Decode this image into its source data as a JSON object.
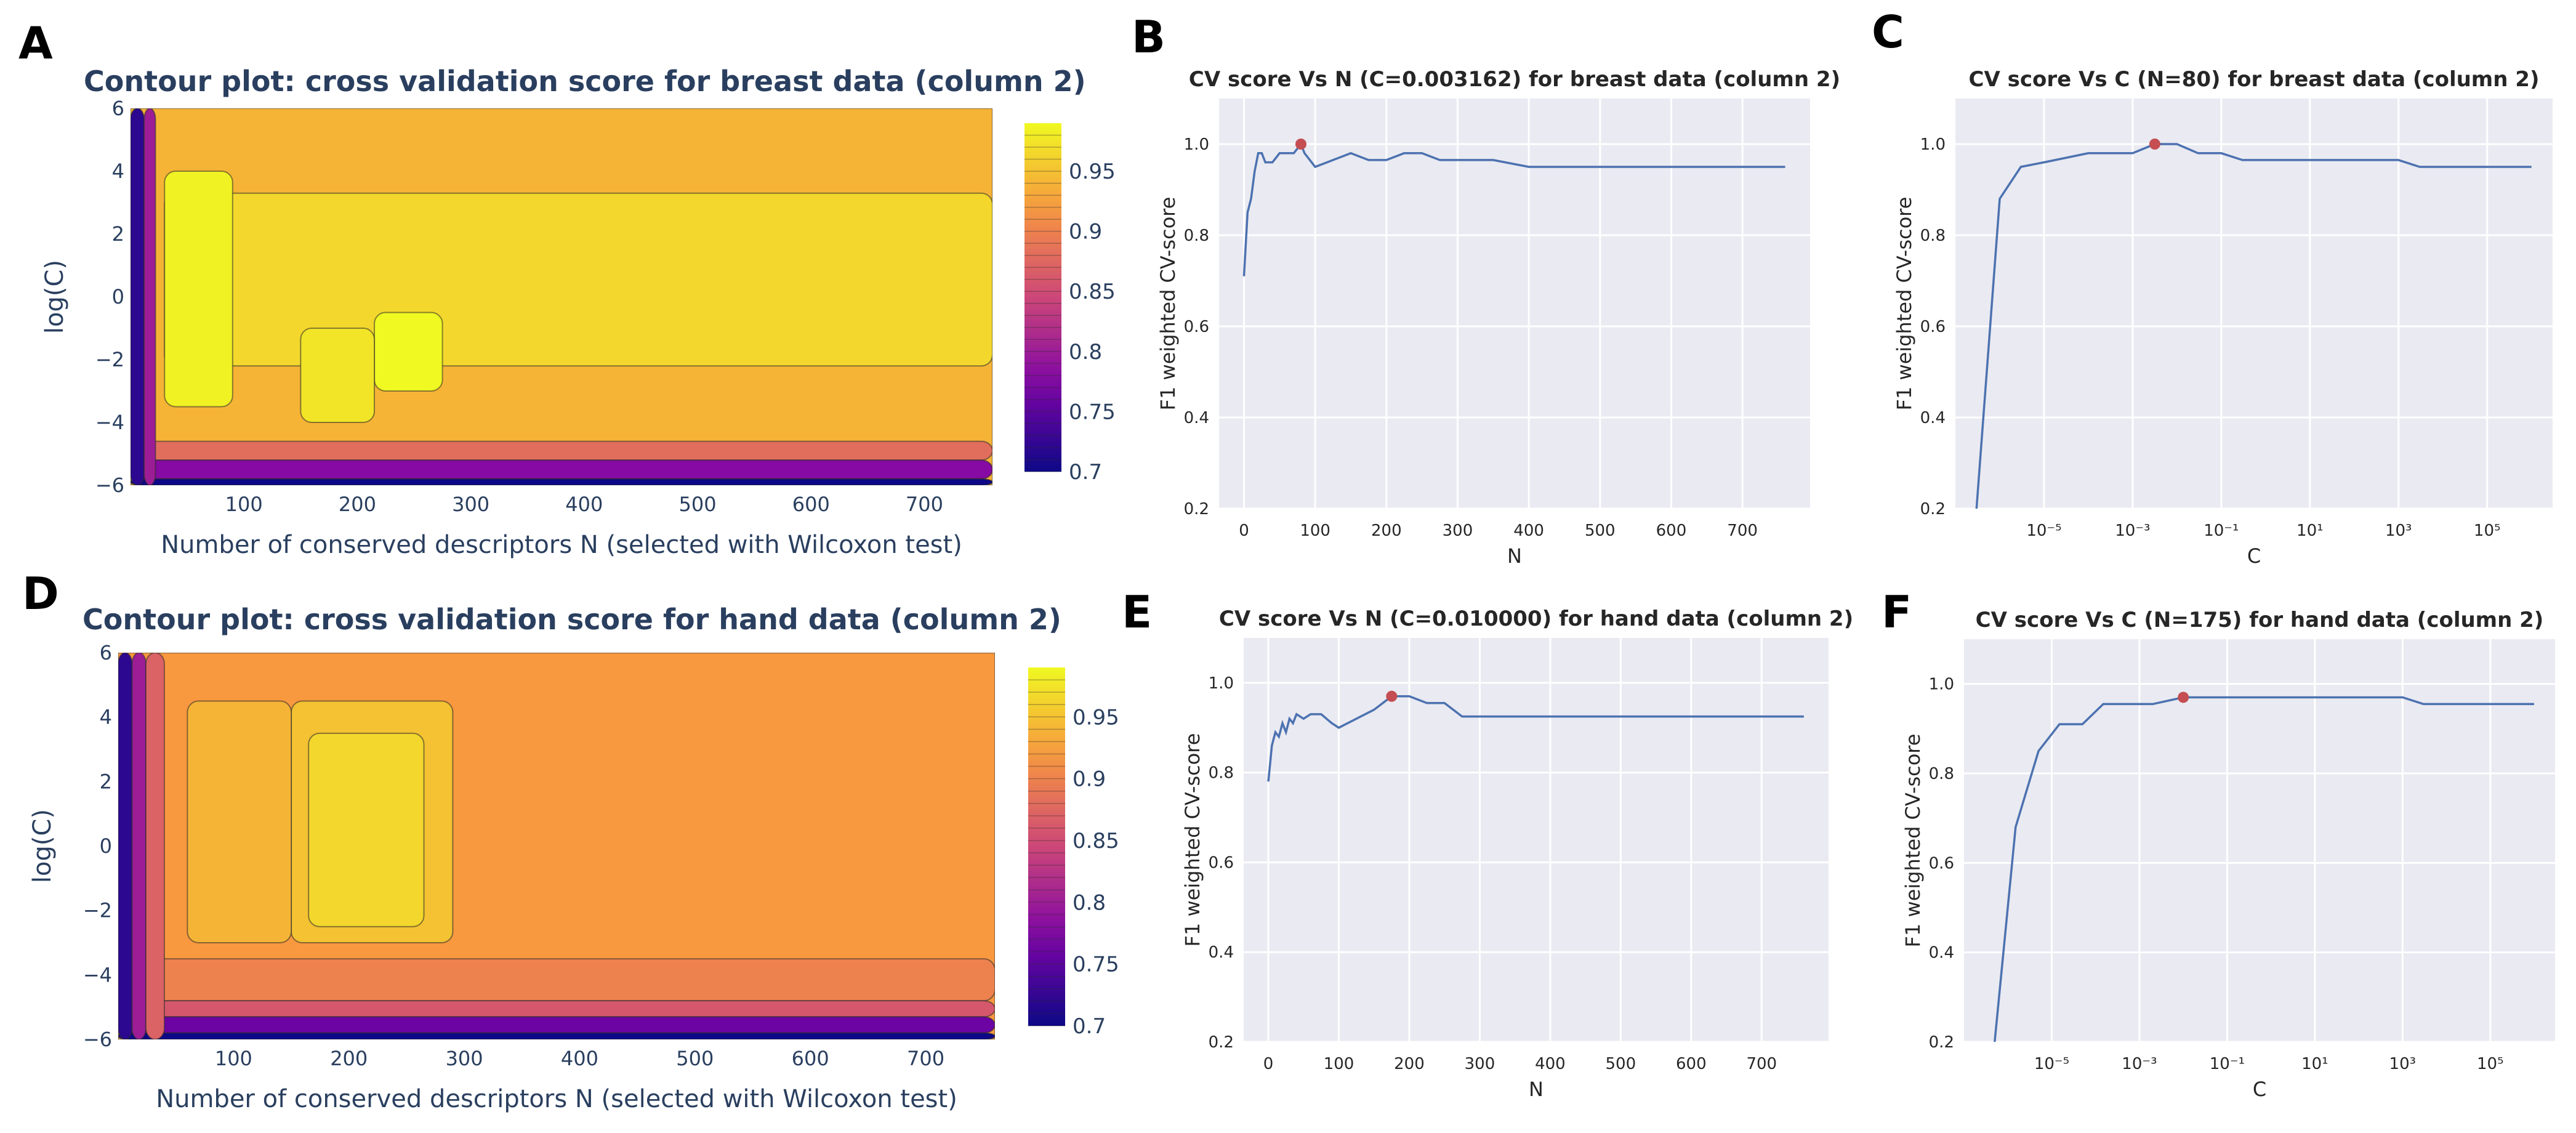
{
  "chart_data": [
    {
      "panel": "A",
      "type": "heatmap",
      "title": "Contour plot: cross validation score for breast data (column 2)",
      "xlabel": "Number of conserved descriptors N (selected with Wilcoxon test)",
      "ylabel": "log(C)",
      "xlim": [
        0,
        760
      ],
      "ylim": [
        -6,
        6
      ],
      "x_ticks": [
        100,
        200,
        300,
        400,
        500,
        600,
        700
      ],
      "y_ticks": [
        -6,
        -4,
        -2,
        0,
        2,
        4,
        6
      ],
      "colorbar_ticks": [
        0.95,
        0.9,
        0.85,
        0.8,
        0.75,
        0.7
      ],
      "colorbar_range": [
        0.7,
        0.99
      ],
      "regions": [
        {
          "x": [
            0,
            760
          ],
          "y": [
            -6,
            6
          ],
          "value": 0.94
        },
        {
          "x": [
            30,
            760
          ],
          "y": [
            -2.2,
            3.3
          ],
          "value": 0.965
        },
        {
          "x": [
            30,
            90
          ],
          "y": [
            -3.5,
            4
          ],
          "value": 0.985
        },
        {
          "x": [
            215,
            275
          ],
          "y": [
            -3,
            -0.5
          ],
          "value": 0.99
        },
        {
          "x": [
            150,
            215
          ],
          "y": [
            -4,
            -1
          ],
          "value": 0.975
        },
        {
          "x": [
            0,
            760
          ],
          "y": [
            -5.2,
            -4.6
          ],
          "value": 0.88
        },
        {
          "x": [
            0,
            760
          ],
          "y": [
            -5.8,
            -5.2
          ],
          "value": 0.78
        },
        {
          "x": [
            0,
            760
          ],
          "y": [
            -6,
            -5.8
          ],
          "value": 0.7
        },
        {
          "x": [
            0,
            12
          ],
          "y": [
            -6,
            6
          ],
          "value": 0.72
        },
        {
          "x": [
            12,
            22
          ],
          "y": [
            -6,
            6
          ],
          "value": 0.8
        }
      ]
    },
    {
      "panel": "B",
      "type": "line",
      "title": "CV score Vs N (C=0.003162) for breast data (column 2)",
      "xlabel": "N",
      "ylabel": "F1 weighted CV-score",
      "xlim": [
        -35,
        795
      ],
      "ylim": [
        0.2,
        1.1
      ],
      "x_ticks": [
        0,
        100,
        200,
        300,
        400,
        500,
        600,
        700
      ],
      "y_ticks": [
        0.2,
        0.4,
        0.6,
        0.8,
        1.0
      ],
      "x": [
        0,
        5,
        10,
        15,
        20,
        25,
        30,
        40,
        50,
        60,
        70,
        80,
        85,
        90,
        100,
        125,
        150,
        175,
        200,
        225,
        250,
        275,
        300,
        350,
        400,
        450,
        500,
        550,
        600,
        650,
        700,
        760
      ],
      "y": [
        0.71,
        0.85,
        0.88,
        0.94,
        0.98,
        0.98,
        0.96,
        0.96,
        0.98,
        0.98,
        0.98,
        1.0,
        0.98,
        0.97,
        0.95,
        0.965,
        0.98,
        0.965,
        0.965,
        0.98,
        0.98,
        0.965,
        0.965,
        0.965,
        0.95,
        0.95,
        0.95,
        0.95,
        0.95,
        0.95,
        0.95,
        0.95
      ],
      "highlight": {
        "x": 80,
        "y": 1.0
      }
    },
    {
      "panel": "C",
      "type": "line",
      "title": "CV score Vs C (N=80) for breast data (column 2)",
      "xlabel": "C",
      "ylabel": "F1 weighted CV-score",
      "x_scale": "log",
      "xlim": [
        1e-07,
        3000000.0
      ],
      "ylim": [
        0.2,
        1.1
      ],
      "x_ticks": [
        1e-05,
        0.001,
        0.1,
        10,
        1000,
        100000
      ],
      "x_tick_labels": [
        "10⁻⁵",
        "10⁻³",
        "10⁻¹",
        "10¹",
        "10³",
        "10⁵"
      ],
      "y_ticks": [
        0.2,
        0.4,
        0.6,
        0.8,
        1.0
      ],
      "x": [
        3e-07,
        1e-06,
        3e-06,
        1e-05,
        0.0001,
        0.001,
        0.003162,
        0.01,
        0.03,
        0.1,
        0.3,
        1,
        10,
        100,
        1000,
        3000,
        10000,
        100000,
        1000000
      ],
      "y": [
        0.2,
        0.88,
        0.95,
        0.96,
        0.98,
        0.98,
        1.0,
        1.0,
        0.98,
        0.98,
        0.965,
        0.965,
        0.965,
        0.965,
        0.965,
        0.95,
        0.95,
        0.95,
        0.95
      ],
      "highlight": {
        "x": 0.003162,
        "y": 1.0
      }
    },
    {
      "panel": "D",
      "type": "heatmap",
      "title": "Contour plot: cross validation score for hand data (column 2)",
      "xlabel": "Number of conserved descriptors N (selected with Wilcoxon test)",
      "ylabel": "log(C)",
      "xlim": [
        0,
        760
      ],
      "ylim": [
        -6,
        6
      ],
      "x_ticks": [
        100,
        200,
        300,
        400,
        500,
        600,
        700
      ],
      "y_ticks": [
        -6,
        -4,
        -2,
        0,
        2,
        4,
        6
      ],
      "colorbar_ticks": [
        0.95,
        0.9,
        0.85,
        0.8,
        0.75,
        0.7
      ],
      "colorbar_range": [
        0.7,
        0.99
      ],
      "regions": [
        {
          "x": [
            0,
            760
          ],
          "y": [
            -6,
            6
          ],
          "value": 0.92
        },
        {
          "x": [
            150,
            290
          ],
          "y": [
            -3,
            4.5
          ],
          "value": 0.95
        },
        {
          "x": [
            165,
            265
          ],
          "y": [
            -2.5,
            3.5
          ],
          "value": 0.965
        },
        {
          "x": [
            60,
            150
          ],
          "y": [
            -3,
            4.5
          ],
          "value": 0.94
        },
        {
          "x": [
            0,
            760
          ],
          "y": [
            -4.8,
            -3.5
          ],
          "value": 0.9
        },
        {
          "x": [
            0,
            760
          ],
          "y": [
            -5.3,
            -4.8
          ],
          "value": 0.86
        },
        {
          "x": [
            0,
            760
          ],
          "y": [
            -5.8,
            -5.3
          ],
          "value": 0.76
        },
        {
          "x": [
            0,
            760
          ],
          "y": [
            -6,
            -5.8
          ],
          "value": 0.7
        },
        {
          "x": [
            0,
            12
          ],
          "y": [
            -6,
            6
          ],
          "value": 0.72
        },
        {
          "x": [
            12,
            24
          ],
          "y": [
            -6,
            6
          ],
          "value": 0.8
        },
        {
          "x": [
            24,
            40
          ],
          "y": [
            -6,
            6
          ],
          "value": 0.87
        }
      ]
    },
    {
      "panel": "E",
      "type": "line",
      "title": "CV score Vs N (C=0.010000) for hand data (column 2)",
      "xlabel": "N",
      "ylabel": "F1 weighted CV-score",
      "xlim": [
        -35,
        795
      ],
      "ylim": [
        0.2,
        1.1
      ],
      "x_ticks": [
        0,
        100,
        200,
        300,
        400,
        500,
        600,
        700
      ],
      "y_ticks": [
        0.2,
        0.4,
        0.6,
        0.8,
        1.0
      ],
      "x": [
        0,
        5,
        10,
        15,
        20,
        25,
        30,
        35,
        40,
        50,
        60,
        75,
        90,
        100,
        125,
        150,
        175,
        200,
        225,
        250,
        275,
        300,
        350,
        400,
        450,
        500,
        550,
        600,
        650,
        700,
        760
      ],
      "y": [
        0.78,
        0.86,
        0.89,
        0.88,
        0.91,
        0.89,
        0.92,
        0.91,
        0.93,
        0.92,
        0.93,
        0.93,
        0.91,
        0.9,
        0.92,
        0.94,
        0.97,
        0.97,
        0.955,
        0.955,
        0.925,
        0.925,
        0.925,
        0.925,
        0.925,
        0.925,
        0.925,
        0.925,
        0.925,
        0.925,
        0.925
      ],
      "highlight": {
        "x": 175,
        "y": 0.97
      }
    },
    {
      "panel": "F",
      "type": "line",
      "title": "CV score Vs C (N=175) for hand data (column 2)",
      "xlabel": "C",
      "ylabel": "F1 weighted CV-score",
      "x_scale": "log",
      "xlim": [
        1e-07,
        3000000.0
      ],
      "ylim": [
        0.2,
        1.1
      ],
      "x_ticks": [
        1e-05,
        0.001,
        0.1,
        10,
        1000,
        100000
      ],
      "x_tick_labels": [
        "10⁻⁵",
        "10⁻³",
        "10⁻¹",
        "10¹",
        "10³",
        "10⁵"
      ],
      "y_ticks": [
        0.2,
        0.4,
        0.6,
        0.8,
        1.0
      ],
      "x": [
        5e-07,
        1.5e-06,
        5e-06,
        1.5e-05,
        5e-05,
        0.00015,
        0.0005,
        0.002,
        0.01,
        0.1,
        1,
        10,
        100,
        1000,
        3000,
        10000,
        100000,
        1000000
      ],
      "y": [
        0.2,
        0.68,
        0.85,
        0.91,
        0.91,
        0.955,
        0.955,
        0.955,
        0.97,
        0.97,
        0.97,
        0.97,
        0.97,
        0.97,
        0.955,
        0.955,
        0.955,
        0.955
      ],
      "highlight": {
        "x": 0.01,
        "y": 0.97
      }
    }
  ]
}
